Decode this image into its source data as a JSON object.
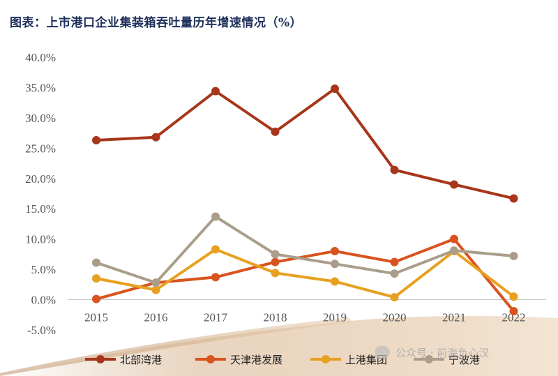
{
  "title": "图表：上市港口企业集装箱吞吐量历年增速情况（%）",
  "watermark": "公众号 · 前海负心汉",
  "chart_data": {
    "type": "line",
    "title": "图表：上市港口企业集装箱吞吐量历年增速情况（%）",
    "xlabel": "",
    "ylabel": "",
    "categories": [
      "2015",
      "2016",
      "2017",
      "2018",
      "2019",
      "2020",
      "2021",
      "2022"
    ],
    "ylim": [
      -5,
      40
    ],
    "yticks": [
      -5,
      0,
      5,
      10,
      15,
      20,
      25,
      30,
      35,
      40
    ],
    "ytick_labels": [
      "-5.0%",
      "0.0%",
      "5.0%",
      "10.0%",
      "15.0%",
      "20.0%",
      "25.0%",
      "30.0%",
      "35.0%",
      "40.0%"
    ],
    "grid": false,
    "legend_position": "bottom",
    "series": [
      {
        "name": "北部湾港",
        "color": "#a8361a",
        "values": [
          26.3,
          26.8,
          34.4,
          27.7,
          34.8,
          21.4,
          19.0,
          16.7
        ]
      },
      {
        "name": "天津港发展",
        "color": "#d9531e",
        "values": [
          0.1,
          2.8,
          3.7,
          6.2,
          8.0,
          6.2,
          10.0,
          -1.9
        ]
      },
      {
        "name": "上港集团",
        "color": "#e8a020",
        "values": [
          3.5,
          1.6,
          8.3,
          4.4,
          3.0,
          0.4,
          8.0,
          0.5
        ]
      },
      {
        "name": "宁波港",
        "color": "#aa9e8a",
        "values": [
          6.1,
          2.8,
          13.7,
          7.5,
          5.9,
          4.3,
          8.1,
          7.2
        ]
      }
    ]
  }
}
